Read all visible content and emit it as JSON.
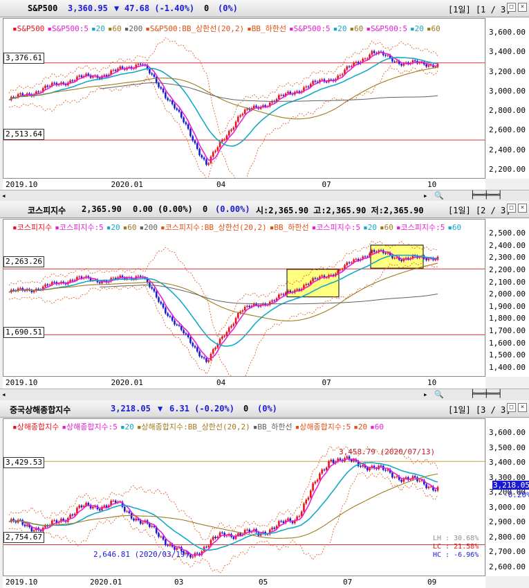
{
  "panels": [
    {
      "name": "S&P500",
      "price": "3,360.95",
      "arrow": "▼",
      "change": "47.68 (-1.40%)",
      "vol": "0",
      "volpct": "(0%)",
      "period": "[1일] [1 / 3]",
      "legend": [
        "S&P500",
        "S&P500:5",
        "20",
        "60",
        "200",
        "S&P500:BB_상한선(20,2)",
        "BB_하한선",
        "S&P500:5",
        "20",
        "60",
        "S&P500:5",
        "20",
        "60"
      ],
      "levels": [
        "3,376.61",
        "2,513.64"
      ],
      "yticks": [
        "3,600.00",
        "3,400.00",
        "3,200.00",
        "3,000.00",
        "2,800.00",
        "2,600.00",
        "2,400.00",
        "2,200.00"
      ],
      "xticks": [
        "2019.10",
        "2020.01",
        "04",
        "07",
        "10"
      ]
    },
    {
      "name": "코스피지수",
      "price": "2,365.90",
      "arrow": "",
      "change": "0.00 (0.00%)",
      "vol": "0",
      "volpct": "(0.00%)",
      "ohlc": "시:2,365.90 고:2,365.90 저:2,365.90",
      "period": "[1일] [2 / 3]",
      "legend": [
        "코스피지수",
        "코스피지수:5",
        "20",
        "60",
        "200",
        "코스피지수:BB_상한선(20,2)",
        "BB_하한선",
        "코스피지수:5",
        "20",
        "60",
        "코스피지수:5",
        "60"
      ],
      "levels": [
        "2,263.26",
        "1,690.51"
      ],
      "yticks": [
        "2,500.00",
        "2,400.00",
        "2,300.00",
        "2,200.00",
        "2,100.00",
        "2,000.00",
        "1,900.00",
        "1,800.00",
        "1,700.00",
        "1,600.00",
        "1,500.00",
        "1,400.00"
      ],
      "xticks": [
        "2019.10",
        "2020.01",
        "04",
        "07",
        "10"
      ]
    },
    {
      "name": "중국상해종합지수",
      "price": "3,218.05",
      "arrow": "▼",
      "change": "6.31 (-0.20%)",
      "vol": "0",
      "volpct": "(0%)",
      "period": "[1일] [3 / 3]",
      "legend": [
        "상해종합지수",
        "상해종합지수:5",
        "20",
        "상해종합지수:BB_상한선(20,2)",
        "BB_하한선",
        "상해종합지수:5",
        "20",
        "60"
      ],
      "levels": [
        "3,429.53",
        "2,754.67"
      ],
      "yticks": [
        "3,600.00",
        "3,500.00",
        "3,400.00",
        "3,300.00",
        "3,200.00",
        "3,000.00",
        "2,900.00",
        "2,800.00",
        "2,700.00",
        "2,600.00"
      ],
      "xticks": [
        "2019.10",
        "2020.01",
        "03",
        "05",
        "07",
        "09"
      ],
      "annot_high": "3,458.79 (2020/07/13)",
      "annot_low": "2,646.81 (2020/03/19)",
      "cur_price": "3,218.05",
      "cur_pct": "-0.20%",
      "stats": [
        "LH : 30.68%",
        "LC : 21.58%",
        "HC : -6.96%"
      ]
    }
  ],
  "colors": {
    "up": "#e8121b",
    "down": "#1a1ad6",
    "ma5": "#e81ed6",
    "ma20": "#14a8c8",
    "ma60": "#a07a1a",
    "ma200": "#606060",
    "bb": "#e05010",
    "level": "#e03030",
    "box": "#ffff80"
  },
  "chart_data": [
    {
      "type": "line",
      "title": "S&P500",
      "x": [
        "2019.10",
        "2019.11",
        "2019.12",
        "2020.01",
        "2020.02",
        "2020.03",
        "2020.03",
        "2020.04",
        "2020.05",
        "2020.06",
        "2020.07",
        "2020.08",
        "2020.09",
        "2020.10"
      ],
      "series": [
        {
          "name": "S&P500",
          "values": [
            2960,
            3080,
            3200,
            3250,
            3380,
            2900,
            2237,
            2800,
            2950,
            3110,
            3230,
            3500,
            3370,
            3361
          ]
        }
      ],
      "ylim": [
        2150,
        3700
      ]
    },
    {
      "type": "line",
      "title": "코스피지수",
      "x": [
        "2019.10",
        "2019.11",
        "2019.12",
        "2020.01",
        "2020.02",
        "2020.03",
        "2020.03",
        "2020.04",
        "2020.05",
        "2020.06",
        "2020.07",
        "2020.08",
        "2020.09",
        "2020.10"
      ],
      "series": [
        {
          "name": "코스피지수",
          "values": [
            2060,
            2100,
            2180,
            2160,
            2210,
            1800,
            1457,
            1900,
            1990,
            2130,
            2250,
            2420,
            2350,
            2366
          ]
        }
      ],
      "ylim": [
        1380,
        2560
      ]
    },
    {
      "type": "line",
      "title": "중국상해종합지수",
      "x": [
        "2019.10",
        "2019.11",
        "2019.12",
        "2020.01",
        "2020.02",
        "2020.03",
        "2020.04",
        "2020.05",
        "2020.06",
        "2020.07",
        "2020.08",
        "2020.09",
        "2020.10"
      ],
      "series": [
        {
          "name": "상해종합지수",
          "values": [
            2940,
            2880,
            3050,
            3090,
            2880,
            2647,
            2840,
            2850,
            2960,
            3459,
            3400,
            3300,
            3218
          ]
        }
      ],
      "ylim": [
        2550,
        3650
      ]
    }
  ]
}
